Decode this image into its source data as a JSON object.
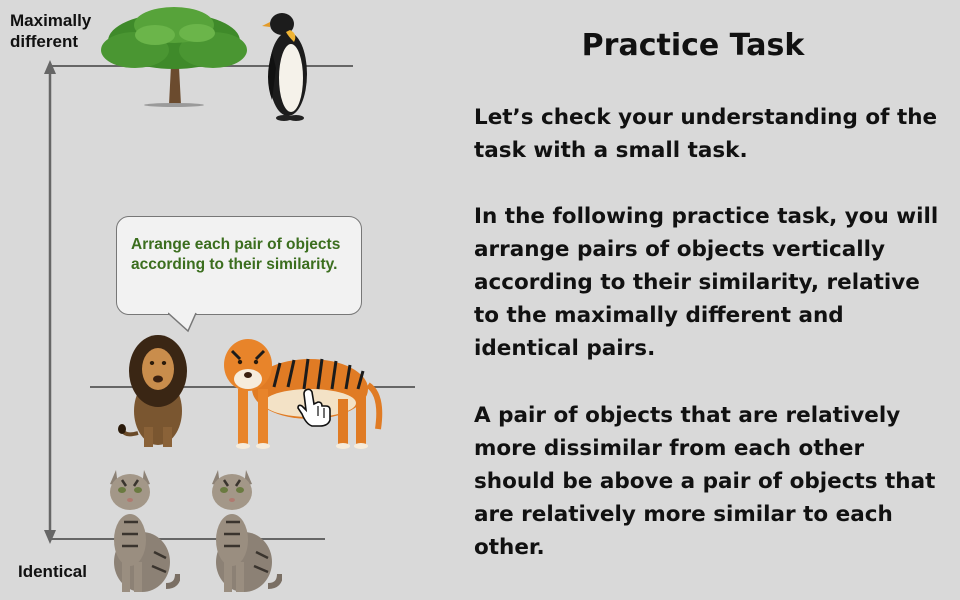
{
  "scale": {
    "top_label": "Maximally different",
    "bottom_label": "Identical"
  },
  "pairs": {
    "top": [
      "tree",
      "penguin"
    ],
    "middle": [
      "lion",
      "tiger"
    ],
    "bottom": [
      "cat",
      "cat"
    ]
  },
  "bubble": {
    "text": "Arrange each pair of objects according to their similarity."
  },
  "panel": {
    "title": "Practice Task",
    "paragraphs": [
      "Let’s check your understanding of the task with a small task.",
      "In the following practice task, you will arrange pairs of objects vertically according to their similarity, relative to the maximally different and identical pairs.",
      "A pair of objects that are relatively more dissimilar from each other should be above a pair of objects that are relatively more similar to each other."
    ]
  },
  "colors": {
    "background": "#d9d9d9",
    "bubble_text": "#3b6e1e",
    "line": "#666666"
  }
}
